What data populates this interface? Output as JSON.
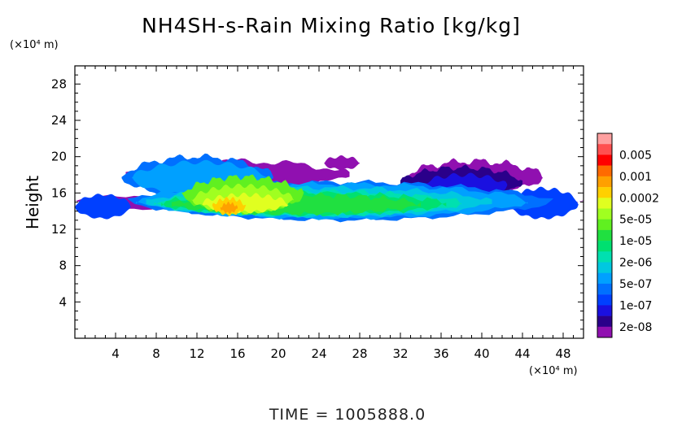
{
  "chart_data": {
    "type": "heatmap",
    "title": "NH4SH-s-Rain Mixing Ratio [kg/kg]",
    "ylabel": "Height",
    "xlabel": "",
    "x_unit": "(×10⁴ m)",
    "y_unit": "(×10⁴ m)",
    "xlim": [
      0,
      50
    ],
    "ylim": [
      0,
      30
    ],
    "x_ticks": [
      4,
      8,
      12,
      16,
      20,
      24,
      28,
      32,
      36,
      40,
      44,
      48
    ],
    "y_ticks": [
      4,
      8,
      12,
      16,
      20,
      24,
      28
    ],
    "time_label": "TIME  =  1005888.0",
    "legend": {
      "placement": "right",
      "levels": [
        {
          "label": "",
          "color": "#ffa0a0"
        },
        {
          "label": "0.005",
          "color": "#ff5050"
        },
        {
          "label": "",
          "color": "#ff0000"
        },
        {
          "label": "0.001",
          "color": "#ff6a00"
        },
        {
          "label": "",
          "color": "#ffa000"
        },
        {
          "label": "0.0002",
          "color": "#ffd000"
        },
        {
          "label": "",
          "color": "#e0ff20"
        },
        {
          "label": "5e-05",
          "color": "#a0ff20"
        },
        {
          "label": "",
          "color": "#60f020"
        },
        {
          "label": "1e-05",
          "color": "#20e040"
        },
        {
          "label": "",
          "color": "#00e070"
        },
        {
          "label": "2e-06",
          "color": "#00e0b0"
        },
        {
          "label": "",
          "color": "#00c8e0"
        },
        {
          "label": "5e-07",
          "color": "#00a0ff"
        },
        {
          "label": "",
          "color": "#0070ff"
        },
        {
          "label": "1e-07",
          "color": "#0040ff"
        },
        {
          "label": "",
          "color": "#1a10e0"
        },
        {
          "label": "2e-08",
          "color": "#2a008a"
        },
        {
          "label": "",
          "color": "#9010b0"
        }
      ]
    },
    "cloud_regions": [
      {
        "level": 18,
        "x": [
          0,
          50
        ],
        "y": [
          13.8,
          16.2
        ],
        "thickness": 0.55,
        "bumps": [
          [
            0.4,
            5
          ],
          [
            0.25,
            17
          ]
        ]
      },
      {
        "level": 18,
        "x": [
          5.0,
          27.0
        ],
        "y": [
          16.5,
          19.5
        ],
        "thickness": 0.6,
        "bumps": [
          [
            0.5,
            4
          ],
          [
            0.3,
            11
          ]
        ]
      },
      {
        "level": 18,
        "x": [
          32.5,
          46.0
        ],
        "y": [
          16.0,
          19.5
        ],
        "thickness": 0.55,
        "bumps": [
          [
            0.6,
            5
          ],
          [
            0.3,
            13
          ]
        ]
      },
      {
        "level": 18,
        "x": [
          24.5,
          28.0
        ],
        "y": [
          18.6,
          20.0
        ],
        "thickness": 0.5,
        "bumps": [
          [
            0.3,
            3
          ]
        ]
      },
      {
        "level": 17,
        "x": [
          32.0,
          44.0
        ],
        "y": [
          15.5,
          18.8
        ],
        "thickness": 0.55,
        "bumps": [
          [
            0.5,
            6
          ],
          [
            0.2,
            15
          ]
        ]
      },
      {
        "level": 16,
        "x": [
          34.0,
          42.5
        ],
        "y": [
          15.5,
          18.0
        ],
        "thickness": 0.55,
        "bumps": [
          [
            0.5,
            5
          ]
        ]
      },
      {
        "level": 15,
        "x": [
          0,
          5.5
        ],
        "y": [
          13.2,
          15.8
        ],
        "thickness": 0.55,
        "bumps": [
          [
            0.3,
            4
          ]
        ]
      },
      {
        "level": 15,
        "x": [
          42.5,
          49.5
        ],
        "y": [
          13.2,
          16.5
        ],
        "thickness": 0.55,
        "bumps": [
          [
            0.4,
            5
          ]
        ]
      },
      {
        "level": 14,
        "x": [
          5.2,
          47.0
        ],
        "y": [
          13.0,
          17.2
        ],
        "thickness": 0.6,
        "bumps": [
          [
            0.4,
            9
          ],
          [
            0.3,
            23
          ]
        ]
      },
      {
        "level": 14,
        "x": [
          4.6,
          19.5
        ],
        "y": [
          15.5,
          20.0
        ],
        "thickness": 0.6,
        "bumps": [
          [
            0.5,
            5
          ],
          [
            0.3,
            12
          ]
        ]
      },
      {
        "level": 13,
        "x": [
          6.0,
          44.5
        ],
        "y": [
          13.2,
          17.0
        ],
        "thickness": 0.55,
        "bumps": [
          [
            0.4,
            8
          ],
          [
            0.3,
            21
          ]
        ]
      },
      {
        "level": 13,
        "x": [
          5.6,
          19.0
        ],
        "y": [
          15.8,
          19.4
        ],
        "thickness": 0.55,
        "bumps": [
          [
            0.5,
            6
          ]
        ]
      },
      {
        "level": 12,
        "x": [
          7.0,
          41.0
        ],
        "y": [
          13.4,
          16.6
        ],
        "thickness": 0.55,
        "bumps": [
          [
            0.4,
            9
          ],
          [
            0.3,
            19
          ]
        ]
      },
      {
        "level": 11,
        "x": [
          7.8,
          38.0
        ],
        "y": [
          13.5,
          16.2
        ],
        "thickness": 0.55,
        "bumps": [
          [
            0.45,
            10
          ],
          [
            0.3,
            23
          ]
        ]
      },
      {
        "level": 10,
        "x": [
          8.5,
          36.5
        ],
        "y": [
          13.6,
          16.0
        ],
        "thickness": 0.55,
        "bumps": [
          [
            0.5,
            11
          ],
          [
            0.3,
            25
          ]
        ]
      },
      {
        "level": 9,
        "x": [
          9.5,
          34.0
        ],
        "y": [
          13.7,
          15.8
        ],
        "thickness": 0.55,
        "bumps": [
          [
            0.5,
            12
          ],
          [
            0.3,
            27
          ]
        ]
      },
      {
        "level": 8,
        "x": [
          10.5,
          22.5
        ],
        "y": [
          13.8,
          17.8
        ],
        "thickness": 0.6,
        "bumps": [
          [
            0.5,
            7
          ],
          [
            0.3,
            15
          ]
        ]
      },
      {
        "level": 7,
        "x": [
          11.5,
          21.5
        ],
        "y": [
          13.8,
          16.8
        ],
        "thickness": 0.6,
        "bumps": [
          [
            0.5,
            8
          ]
        ]
      },
      {
        "level": 6,
        "x": [
          12.5,
          21.0
        ],
        "y": [
          13.9,
          15.8
        ],
        "thickness": 0.6,
        "bumps": [
          [
            0.5,
            7
          ]
        ]
      },
      {
        "level": 5,
        "x": [
          13.5,
          16.8
        ],
        "y": [
          13.6,
          15.4
        ],
        "thickness": 0.65,
        "bumps": [
          [
            0.4,
            5
          ]
        ]
      },
      {
        "level": 4,
        "x": [
          14.3,
          16.0
        ],
        "y": [
          13.8,
          14.9
        ],
        "thickness": 0.7,
        "bumps": [
          [
            0.3,
            4
          ]
        ]
      }
    ]
  }
}
